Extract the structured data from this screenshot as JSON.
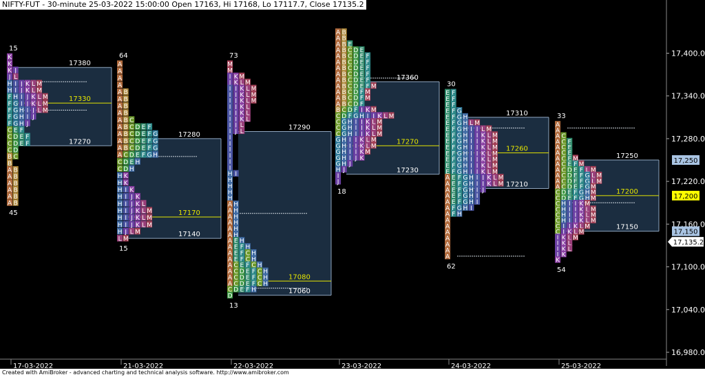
{
  "header": {
    "title": "NIFTY-FUT - 30-minute 25-03-2022 15:00:00 Open 17163, Hi 17168, Lo 17117.7, Close 17135.2"
  },
  "footer": {
    "text": "Created with AmiBroker - advanced charting and technical analysis software. http://www.amibroker.com"
  },
  "colors": {
    "background": "#000000",
    "value_area_fill": "#1b2d40",
    "value_area_border": "#8fa6bf",
    "poc_line": "#e6e600",
    "axis_text": "#ffffff",
    "last_price_label_bg": "#ffffff",
    "poc_label_bg": "#ffff00",
    "va_label_bg": "#a9c4e3"
  },
  "chart_data": {
    "type": "market_profile",
    "y_axis": {
      "range": [
        16965,
        17470
      ],
      "ticks": [
        "17,400.0",
        "17,340.0",
        "17,280.0",
        "17,220.0",
        "17,160.0",
        "17,100.0",
        "17,040.0",
        "16,980.0"
      ],
      "tick_values": [
        17400,
        17340,
        17280,
        17220,
        17160,
        17100,
        17040,
        16980
      ]
    },
    "last_price": {
      "value": 17135.2,
      "label": "17,135.2"
    },
    "right_labels": [
      {
        "value": 17250,
        "label": "17,250",
        "kind": "va"
      },
      {
        "value": 17200,
        "label": "17,200",
        "kind": "poc"
      },
      {
        "value": 17150,
        "label": "17,150",
        "kind": "va"
      }
    ],
    "letter_colors": {
      "A": "#b06a3c",
      "B": "#b08a3c",
      "C": "#6d9a2b",
      "D": "#3f9a45",
      "E": "#2e8a6a",
      "F": "#2e8a8a",
      "G": "#2e7a9a",
      "H": "#3f6aa3",
      "I": "#4a55a3",
      "J": "#6a3fa3",
      "K": "#8a3fa3",
      "L": "#9a3f7a",
      "M": "#a33f55"
    },
    "sessions": [
      {
        "date": "17-03-2022",
        "high": 17395,
        "low": 17190,
        "top_count": "15",
        "bottom_count": "45",
        "va_high": 17380,
        "va_low": 17270,
        "poc": 17330,
        "va_high_label": "17380",
        "va_low_label": "17270",
        "poc_label": "17330",
        "extras": [
          17320,
          17360
        ],
        "rows": [
          "K",
          "K",
          "KJ",
          "JL",
          "HIJKLM",
          "HIJKLM",
          "FHIJKLM",
          "FGIJKLM",
          "FGHIJLM",
          "FGHIJ",
          "FGHJ",
          "CEF",
          "CDEF",
          "CDEF",
          "CD",
          "BC",
          "B",
          "AB",
          "AB",
          "AB",
          "AB",
          "AB",
          "AB"
        ]
      },
      {
        "date": "21-03-2022",
        "high": 17385,
        "low": 17140,
        "top_count": "64",
        "bottom_count": "15",
        "va_high": 17280,
        "va_low": 17140,
        "poc": 17170,
        "va_high_label": "17280",
        "va_low_label": "17140",
        "poc_label": "17170",
        "extras": [
          17255
        ],
        "rows": [
          "A",
          "A",
          "A",
          "A",
          "AB",
          "AB",
          "AB",
          "AB",
          "ABC",
          "ABCDEF",
          "ABCDEFG",
          "ABCDEFG",
          "ABCDEFG",
          "ACDEFGH",
          "CDEH",
          "CDH",
          "HK",
          "HK",
          "HIK",
          "HIJK",
          "HIJKL",
          "HIJKLM",
          "HIJKLM",
          "HIJKLM",
          "HJLM",
          "LM"
        ]
      },
      {
        "date": "22-03-2022",
        "high": 17385,
        "low": 17060,
        "top_count": "73",
        "bottom_count": "13",
        "va_high": 17290,
        "va_low": 17060,
        "poc": 17080,
        "va_high_label": "17290",
        "va_low_label": "17060",
        "poc_label": "17080",
        "extras": [
          17175,
          17070
        ],
        "rows": [
          "M",
          "M",
          "JKM",
          "JKLM",
          "IJKLM",
          "IJKLM",
          "IJKLM",
          "IJKL",
          "IJKL",
          "IJKL",
          "IJL",
          "IJL",
          "I",
          "I",
          "I",
          "I",
          "I",
          "I",
          "HI",
          "H",
          "H",
          "H",
          "H",
          "AH",
          "AH",
          "AH",
          "AH",
          "AH",
          "AH",
          "AEH",
          "AEFH",
          "AEFCH",
          "AEFCH",
          "ACEFCH",
          "ACDEFCH",
          "ACDEFCH",
          "ACDEFCH",
          "CDEFH",
          "D"
        ]
      },
      {
        "date": "23-03-2022",
        "high": 17430,
        "low": 17220,
        "top_count": "",
        "bottom_count": "18",
        "va_high": 17360,
        "va_low": 17230,
        "poc": 17270,
        "va_high_label": "17360",
        "va_low_label": "17230",
        "poc_label": "17270",
        "extras": [
          17365
        ],
        "rows": [
          "AB",
          "AB",
          "ABE",
          "ABCDE",
          "ABCDEF",
          "ABCDEF",
          "ABCDEF",
          "ABCDEF",
          "ABCDEF",
          "ABCDEFM",
          "ABCDFM",
          "ABCDFM",
          "ABCDF",
          "BCDFJKM",
          "CDFGHIJKLM",
          "CGHIJKLM",
          "CGHIJKLM",
          "CGHIJKLM",
          "GHIJKLM",
          "GHIJKLM",
          "GHIJKM",
          "GHIJK",
          "GHJ",
          "HJ",
          "J",
          "J"
        ]
      },
      {
        "date": "24-03-2022",
        "high": 17345,
        "low": 17115,
        "top_count": "30",
        "bottom_count": "62",
        "va_high": 17310,
        "va_low": 17210,
        "poc": 17260,
        "va_high_label": "17310",
        "va_low_label": "17210",
        "poc_label": "17260",
        "extras": [
          17295,
          17115
        ],
        "rows": [
          "EF",
          "EF",
          "EF",
          "EFG",
          "EFGH",
          "EFGHLM",
          "EFGHIJLM",
          "EFGHIJKLM",
          "EFGHIJKLM",
          "EFGHIJKLM",
          "EFGHIJKLM",
          "EFGHIJKLM",
          "EFGHIJKLM",
          "EFGHIJKLM",
          "AEFGHIJKLM",
          "AEFGHIJKLM",
          "AEFGHIJ",
          "AEFGHI",
          "AEFGHI",
          "AFGHI",
          "AFH",
          "A",
          "A",
          "A",
          "A",
          "A",
          "A",
          "A"
        ]
      },
      {
        "date": "25-03-2022",
        "high": 17300,
        "low": 17110,
        "top_count": "33",
        "bottom_count": "54",
        "va_high": 17250,
        "va_low": 17150,
        "poc": 17200,
        "va_high_label": "17250",
        "va_low_label": "17150",
        "poc_label": "17200",
        "extras": [
          17295,
          17190
        ],
        "rows": [
          "A",
          "A",
          "AC",
          "ACE",
          "ACE",
          "ACE",
          "ACEM",
          "ACEFM",
          "ACDEFLM",
          "ACDEFGLM",
          "ACDEFGLM",
          "ACDEFGM",
          "CDEFGHM",
          "CDEFGHM",
          "CHIJKM",
          "CHIJKLM",
          "CHIJKLM",
          "CHIJKLM",
          "CIJKLM",
          "CJKLM",
          "JKLM",
          "JKL",
          "JKL",
          "JK",
          "K"
        ]
      }
    ]
  }
}
